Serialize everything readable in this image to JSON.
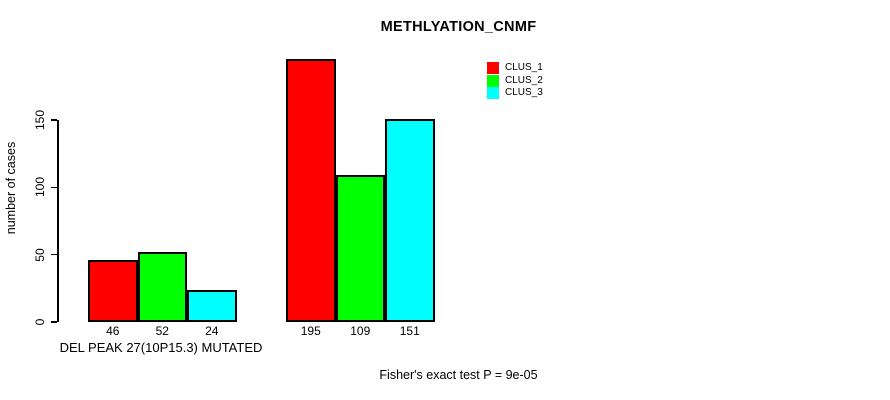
{
  "figure": {
    "title": "METHLYATION_CNMF",
    "footnote": "Fisher's exact test P = 9e-05"
  },
  "chart_data": {
    "type": "bar",
    "title": "METHLYATION_CNMF",
    "xlabel": "DEL PEAK 27(10P15.3) MUTATED",
    "ylabel": "number of cases",
    "categories": [
      "DEL PEAK 27(10P15.3) MUTATED",
      ""
    ],
    "series": [
      {
        "name": "CLUS_1",
        "color": "#FF0000",
        "values": [
          46,
          195
        ]
      },
      {
        "name": "CLUS_2",
        "color": "#00FF00",
        "values": [
          52,
          109
        ]
      },
      {
        "name": "CLUS_3",
        "color": "#00FFFF",
        "values": [
          24,
          151
        ]
      }
    ],
    "bar_value_labels": [
      [
        46,
        52,
        24
      ],
      [
        195,
        109,
        151
      ]
    ],
    "yticks": [
      0,
      50,
      100,
      150
    ],
    "ylim": [
      0,
      200
    ],
    "grid": false,
    "legend": {
      "position": "top-right",
      "entries": [
        "CLUS_1",
        "CLUS_2",
        "CLUS_3"
      ]
    },
    "annotation": "Fisher's exact test P = 9e-05"
  }
}
